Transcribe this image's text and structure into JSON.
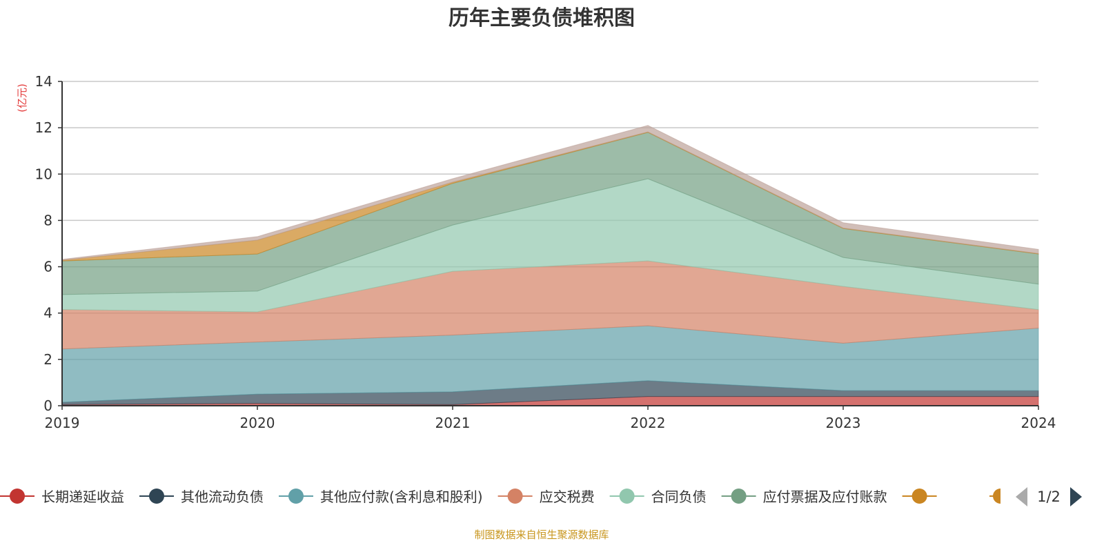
{
  "chart_data": {
    "type": "area",
    "stacked": true,
    "title": "历年主要负债堆积图",
    "ylabel": "(亿元)",
    "xlabel": "",
    "ylim": [
      0,
      14
    ],
    "yticks": [
      0,
      2,
      4,
      6,
      8,
      10,
      12,
      14
    ],
    "grid": true,
    "categories": [
      "2019",
      "2020",
      "2021",
      "2022",
      "2023",
      "2024"
    ],
    "series": [
      {
        "name": "长期递延收益",
        "color": "#c23531",
        "values": [
          0.05,
          0.1,
          0.05,
          0.4,
          0.4,
          0.4
        ]
      },
      {
        "name": "其他流动负债",
        "color": "#2f4554",
        "values": [
          0.1,
          0.4,
          0.55,
          0.68,
          0.25,
          0.25
        ]
      },
      {
        "name": "其他应付款(含利息和股利)",
        "color": "#61a0a8",
        "values": [
          2.3,
          2.25,
          2.45,
          2.37,
          2.05,
          2.7
        ]
      },
      {
        "name": "应交税费",
        "color": "#d48265",
        "values": [
          1.7,
          1.3,
          2.75,
          2.8,
          2.45,
          0.8
        ]
      },
      {
        "name": "合同负债",
        "color": "#91c7ae",
        "values": [
          0.65,
          0.9,
          2.0,
          3.55,
          1.25,
          1.1
        ]
      },
      {
        "name": "应付票据及应付账款",
        "color": "#749f83",
        "values": [
          1.45,
          1.6,
          1.8,
          2.0,
          1.25,
          1.3
        ]
      },
      {
        "name": "",
        "color": "#ca8622",
        "values": [
          0.03,
          0.6,
          0.05,
          0.02,
          0.02,
          0.02
        ]
      },
      {
        "name": "",
        "color": "#bda29a",
        "values": [
          0.04,
          0.15,
          0.15,
          0.28,
          0.23,
          0.18
        ]
      }
    ],
    "legend": {
      "position": "bottom",
      "page": "1/2"
    }
  },
  "footer": "制图数据来自恒生聚源数据库"
}
